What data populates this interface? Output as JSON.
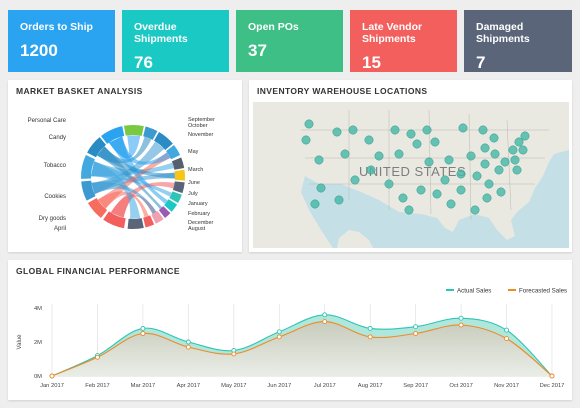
{
  "kpis": [
    {
      "title": "Orders to Ship",
      "value": "1200",
      "color": "#2aa3f0"
    },
    {
      "title": "Overdue Shipments",
      "value": "76",
      "color": "#1bc9c4"
    },
    {
      "title": "Open POs",
      "value": "37",
      "color": "#3dbf86"
    },
    {
      "title": "Late Vendor Shipments",
      "value": "15",
      "color": "#f25f5c"
    },
    {
      "title": "Damaged Shipments",
      "value": "7",
      "color": "#5b6579"
    }
  ],
  "basket": {
    "title": "MARKET BASKET ANALYSIS",
    "left_labels": [
      "Personal Care",
      "Candy",
      "Tobacco",
      "Cookies",
      "Dry goods",
      "April"
    ],
    "right_labels": [
      "September",
      "October",
      "November",
      "May",
      "March",
      "June",
      "July",
      "January",
      "February",
      "December",
      "August"
    ]
  },
  "map": {
    "title": "INVENTORY WAREHOUSE LOCATIONS",
    "country_label": "UNITED STATES"
  },
  "finance": {
    "title": "GLOBAL FINANCIAL PERFORMANCE",
    "legend": [
      {
        "name": "Actual Sales",
        "color": "#2ec4b6"
      },
      {
        "name": "Forecasted Sales",
        "color": "#f08a24"
      }
    ]
  },
  "chart_data": {
    "type": "area",
    "title": "",
    "xlabel": "",
    "ylabel": "Value",
    "categories": [
      "Jan 2017",
      "Feb 2017",
      "Mar 2017",
      "Apr 2017",
      "May 2017",
      "Jun 2017",
      "Jul 2017",
      "Aug 2017",
      "Sep 2017",
      "Oct 2017",
      "Nov 2017",
      "Dec 2017"
    ],
    "y_ticks": [
      "4M",
      "2M",
      "0M"
    ],
    "ylim": [
      0,
      4
    ],
    "series": [
      {
        "name": "Actual Sales",
        "values": [
          0,
          1.2,
          2.8,
          2.0,
          1.5,
          2.6,
          3.6,
          2.8,
          2.9,
          3.4,
          2.7,
          0
        ],
        "color": "#2ec4b6"
      },
      {
        "name": "Forecasted Sales",
        "values": [
          0,
          1.1,
          2.5,
          1.7,
          1.3,
          2.3,
          3.2,
          2.3,
          2.5,
          3.0,
          2.2,
          0
        ],
        "color": "#f08a24"
      }
    ],
    "grid": "vertical",
    "legend_position": "top-right"
  }
}
